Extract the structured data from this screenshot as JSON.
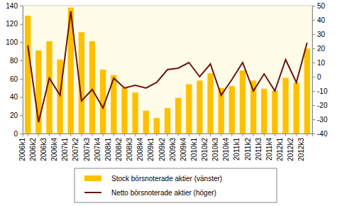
{
  "chart_data": {
    "type": "bar",
    "categories": [
      "2006k1",
      "2006k2",
      "2006k3",
      "2006k4",
      "2007k1",
      "2007k2",
      "2007k3",
      "2007k4",
      "2008k1",
      "2008k2",
      "2008k3",
      "2008k4",
      "2009k1",
      "2009k2",
      "2009k3",
      "2009k4",
      "2010k1",
      "2010k2",
      "2010k3",
      "2010k4",
      "2011k1",
      "2011k2",
      "2011k3",
      "2011k4",
      "2012k1",
      "2012k2",
      "2012k3"
    ],
    "series": [
      {
        "name": "Stock börsnoterade aktier (vänster)",
        "type": "bar",
        "color": "#ffc000",
        "values": [
          129,
          91,
          101,
          81,
          138,
          111,
          101,
          70,
          64,
          50,
          45,
          25,
          17,
          28,
          39,
          54,
          58,
          66,
          50,
          52,
          69,
          58,
          49,
          47,
          61,
          56,
          93
        ]
      },
      {
        "name": "Netto börsnoterade aktier (höger)",
        "type": "line",
        "color": "#6b1414",
        "axis": "y2",
        "values": [
          22,
          -32,
          -1,
          -13,
          46,
          -17,
          -9,
          -22,
          -1,
          -8,
          -6,
          -8,
          -4,
          5,
          6,
          10,
          0,
          9,
          -13,
          -2,
          10,
          -10,
          2,
          -10,
          12,
          -4,
          24
        ]
      }
    ],
    "ylim": [
      0,
      140
    ],
    "yticks": [
      0,
      20,
      40,
      60,
      80,
      100,
      120,
      140
    ],
    "y2lim": [
      -40,
      50
    ],
    "y2ticks": [
      -40,
      -30,
      -20,
      -10,
      0,
      10,
      20,
      30,
      40,
      50
    ],
    "grid": false,
    "legend": "bottom"
  }
}
